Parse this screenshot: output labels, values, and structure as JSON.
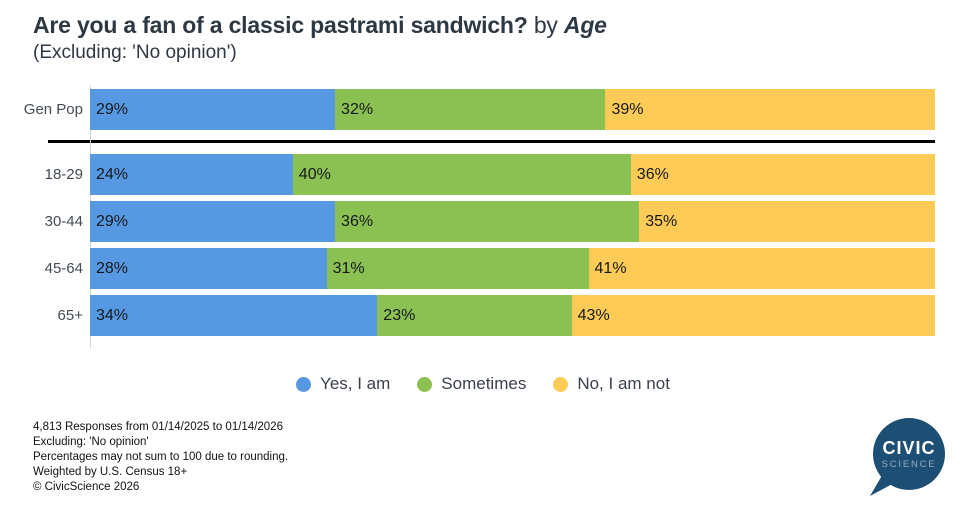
{
  "header": {
    "title_main": "Are you a fan of a classic pastrami sandwich?",
    "title_connector": " by ",
    "title_emphasis": "Age",
    "subtitle": "(Excluding: 'No opinion')"
  },
  "chart_data": {
    "type": "bar",
    "orientation": "horizontal_stacked",
    "title": "Are you a fan of a classic pastrami sandwich? by Age",
    "subtitle": "(Excluding: 'No opinion')",
    "categories": [
      "Gen Pop",
      "18-29",
      "30-44",
      "45-64",
      "65+"
    ],
    "series": [
      {
        "name": "Yes, I am",
        "color": "#5699E2",
        "values": [
          29,
          24,
          29,
          28,
          34
        ]
      },
      {
        "name": "Sometimes",
        "color": "#8BC152",
        "values": [
          32,
          40,
          36,
          31,
          23
        ]
      },
      {
        "name": "No, I am not",
        "color": "#FECC56",
        "values": [
          39,
          36,
          35,
          41,
          43
        ]
      }
    ],
    "value_suffix": "%",
    "xlim": [
      0,
      100
    ],
    "grid": false,
    "legend_position": "bottom",
    "separator_after_first_category": true
  },
  "footer": {
    "lines": [
      "4,813 Responses from 01/14/2025 to 01/14/2026",
      "Excluding: 'No opinion'",
      "Percentages may not sum to 100 due to rounding.",
      "Weighted by U.S. Census 18+",
      "© CivicScience 2026"
    ]
  },
  "logo": {
    "line1": "CIVIC",
    "line2": "SCIENCE",
    "bubble_color": "#1D4E74",
    "line1_color": "#FFFFFF",
    "line2_color": "#93ACC1"
  }
}
